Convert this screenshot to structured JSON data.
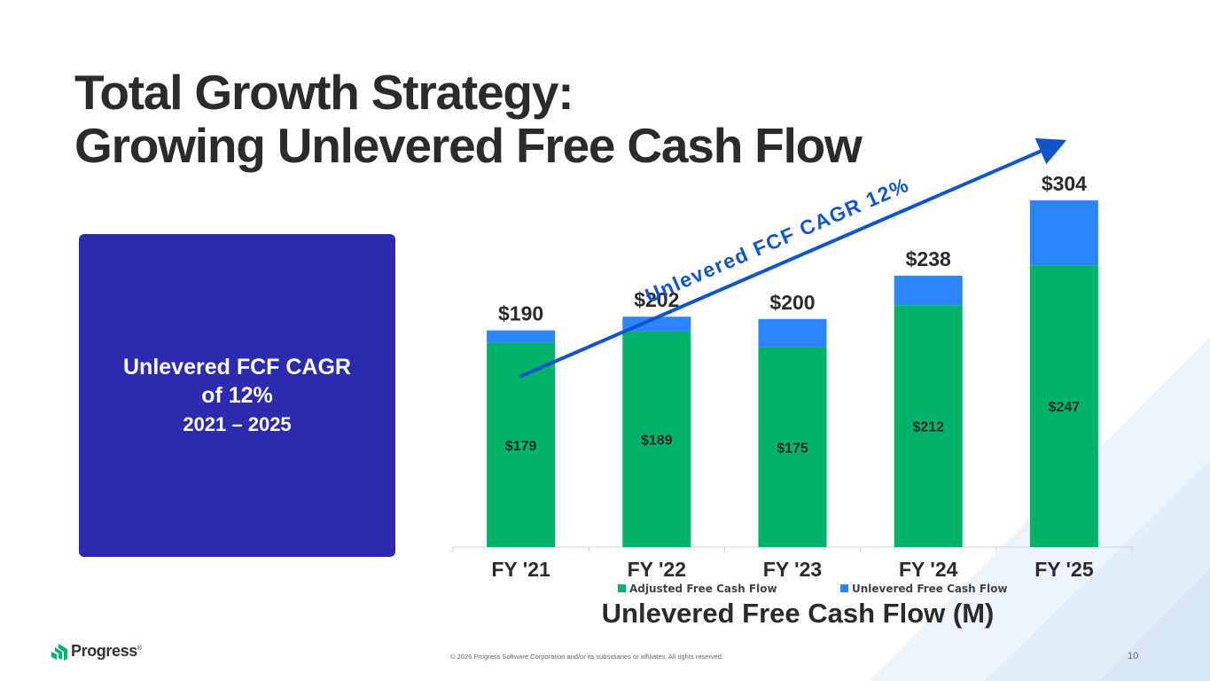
{
  "slide": {
    "title_line1": "Total Growth Strategy:",
    "title_line2": "Growing Unlevered Free Cash Flow",
    "callout_line1": "Unlevered FCF CAGR",
    "callout_line2": "of 12%",
    "callout_line3": "2021 – 2025",
    "footer": "© 2026 Progress Software Corporation and/or its subsidiaries or affiliates. All rights reserved.",
    "page_number": "10",
    "logo_text": "Progress",
    "logo_mark": "®",
    "colors": {
      "callout": "#2c2aae",
      "adjusted": "#00b26a",
      "unlevered": "#2b85fb",
      "arrow": "#1155c9"
    }
  },
  "chart_data": {
    "type": "bar",
    "stacked": true,
    "title": "Unlevered Free Cash Flow (M)",
    "categories": [
      "FY '21",
      "FY '22",
      "FY '23",
      "FY '24",
      "FY '25"
    ],
    "series": [
      {
        "name": "Adjusted Free Cash Flow",
        "values": [
          179,
          189,
          175,
          212,
          247
        ],
        "labels": [
          "$179",
          "$189",
          "$175",
          "$212",
          "$247"
        ]
      },
      {
        "name": "Unlevered Free Cash Flow",
        "values": [
          11,
          13,
          25,
          26,
          57
        ]
      }
    ],
    "totals": [
      190,
      202,
      200,
      238,
      304
    ],
    "total_labels": [
      "$190",
      "$202",
      "$200",
      "$238",
      "$304"
    ],
    "ylim": [
      0,
      320
    ],
    "legend_position": "bottom",
    "annotation": "Unlevered FCF CAGR 12%"
  }
}
